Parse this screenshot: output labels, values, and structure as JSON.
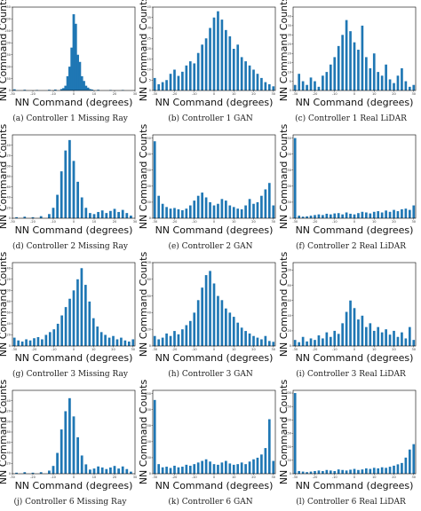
{
  "figure": {
    "bar_color": "#1f77b4",
    "axis_color": "#000000"
  },
  "chart_data": [
    {
      "type": "bar",
      "caption": "(a) Controller 1 Missing Ray",
      "xlabel": "NN Command (degrees)",
      "ylabel": "NN Command Counts",
      "xlim": [
        -30,
        30
      ],
      "ylim": [
        0,
        350
      ],
      "xticks": [
        -30,
        -20,
        -10,
        0,
        10,
        20,
        30
      ],
      "yticks": [
        0,
        50,
        100,
        150,
        200,
        250,
        300,
        350
      ],
      "bin_width": 1.2,
      "x": [
        -29,
        -24,
        -18,
        -12,
        -9,
        -6,
        -5,
        -4,
        -3,
        -2,
        -1,
        0,
        1,
        2,
        3,
        4,
        5,
        6,
        7,
        8,
        9,
        12,
        18,
        24
      ],
      "values": [
        5,
        3,
        2,
        3,
        4,
        6,
        10,
        20,
        60,
        100,
        180,
        320,
        280,
        150,
        120,
        60,
        40,
        20,
        12,
        6,
        4,
        3,
        2,
        2
      ]
    },
    {
      "type": "bar",
      "caption": "(b) Controller 1 GAN",
      "xlabel": "NN Command (degrees)",
      "ylabel": "NN Command Counts",
      "xlim": [
        -31,
        31
      ],
      "ylim": [
        0,
        40
      ],
      "xticks": [
        -30,
        -20,
        -10,
        0,
        10,
        20,
        30
      ],
      "yticks": [
        0,
        5,
        10,
        15,
        20,
        25,
        30,
        35,
        40
      ],
      "bin_width": 1.2,
      "x": [
        -30,
        -28,
        -26,
        -24,
        -22,
        -20,
        -18,
        -16,
        -14,
        -12,
        -10,
        -8,
        -6,
        -4,
        -2,
        0,
        2,
        4,
        6,
        8,
        10,
        12,
        14,
        16,
        18,
        20,
        22,
        24,
        26,
        28,
        30
      ],
      "values": [
        6,
        3,
        4,
        5,
        8,
        10,
        7,
        9,
        12,
        14,
        13,
        18,
        22,
        25,
        30,
        35,
        38,
        34,
        29,
        26,
        20,
        22,
        16,
        14,
        12,
        10,
        8,
        6,
        4,
        3,
        2
      ]
    },
    {
      "type": "bar",
      "caption": "(c) Controller 1 Real LiDAR",
      "xlabel": "NN Command (degrees)",
      "ylabel": "NN Command Counts",
      "xlim": [
        -31,
        31
      ],
      "ylim": [
        0,
        45
      ],
      "xticks": [
        -30,
        -20,
        -10,
        0,
        10,
        20,
        30
      ],
      "yticks": [
        0,
        5,
        10,
        15,
        20,
        25,
        30,
        35,
        40
      ],
      "bin_width": 1.2,
      "x": [
        -30,
        -28,
        -26,
        -24,
        -22,
        -20,
        -18,
        -16,
        -14,
        -12,
        -10,
        -8,
        -6,
        -4,
        -2,
        0,
        2,
        4,
        6,
        8,
        10,
        12,
        14,
        16,
        18,
        20,
        22,
        24,
        26,
        28,
        30
      ],
      "values": [
        3,
        9,
        5,
        3,
        7,
        5,
        2,
        8,
        10,
        14,
        18,
        24,
        30,
        38,
        32,
        26,
        22,
        35,
        18,
        12,
        20,
        10,
        8,
        14,
        6,
        4,
        8,
        12,
        5,
        2,
        3
      ]
    },
    {
      "type": "bar",
      "caption": "(d) Controller 2 Missing Ray",
      "xlabel": "NN Command (degrees)",
      "ylabel": "NN Command Counts",
      "xlim": [
        -30,
        30
      ],
      "ylim": [
        0,
        160
      ],
      "xticks": [
        -30,
        -20,
        -10,
        0,
        10,
        20,
        30
      ],
      "yticks": [
        0,
        20,
        40,
        60,
        80,
        100,
        120,
        140
      ],
      "bin_width": 1.2,
      "x": [
        -28,
        -24,
        -20,
        -16,
        -12,
        -10,
        -8,
        -6,
        -4,
        -2,
        0,
        2,
        4,
        6,
        8,
        10,
        12,
        14,
        16,
        18,
        20,
        22,
        24,
        26,
        28
      ],
      "values": [
        2,
        3,
        2,
        4,
        8,
        20,
        45,
        90,
        130,
        150,
        110,
        70,
        40,
        20,
        10,
        8,
        12,
        15,
        10,
        14,
        18,
        12,
        16,
        10,
        5
      ]
    },
    {
      "type": "bar",
      "caption": "(e) Controller 2 GAN",
      "xlabel": "NN Command (degrees)",
      "ylabel": "NN Command Counts",
      "xlim": [
        -31,
        31
      ],
      "ylim": [
        0,
        260
      ],
      "xticks": [
        -30,
        -20,
        -10,
        0,
        10,
        20,
        30
      ],
      "yticks": [
        0,
        50,
        100,
        150,
        200,
        250
      ],
      "bin_width": 1.2,
      "x": [
        -30,
        -28,
        -26,
        -24,
        -22,
        -20,
        -18,
        -16,
        -14,
        -12,
        -10,
        -8,
        -6,
        -4,
        -2,
        0,
        2,
        4,
        6,
        8,
        10,
        12,
        14,
        16,
        18,
        20,
        22,
        24,
        26,
        28,
        30
      ],
      "values": [
        240,
        70,
        45,
        35,
        30,
        32,
        28,
        25,
        30,
        40,
        55,
        70,
        80,
        65,
        50,
        40,
        45,
        60,
        55,
        40,
        35,
        30,
        28,
        40,
        60,
        45,
        50,
        70,
        90,
        110,
        40
      ]
    },
    {
      "type": "bar",
      "caption": "(f) Controller 2 Real LiDAR",
      "xlabel": "NN Command (degrees)",
      "ylabel": "NN Command Counts",
      "xlim": [
        -31,
        31
      ],
      "ylim": [
        0,
        260
      ],
      "xticks": [
        -30,
        -20,
        -10,
        0,
        10,
        20,
        30
      ],
      "yticks": [
        0,
        50,
        100,
        150,
        200,
        250
      ],
      "bin_width": 1.2,
      "x": [
        -30,
        -28,
        -26,
        -24,
        -22,
        -20,
        -18,
        -16,
        -14,
        -12,
        -10,
        -8,
        -6,
        -4,
        -2,
        0,
        2,
        4,
        6,
        8,
        10,
        12,
        14,
        16,
        18,
        20,
        22,
        24,
        26,
        28,
        30
      ],
      "values": [
        250,
        8,
        5,
        6,
        8,
        10,
        12,
        10,
        14,
        12,
        15,
        16,
        12,
        18,
        14,
        12,
        16,
        20,
        18,
        15,
        20,
        22,
        18,
        24,
        20,
        26,
        22,
        28,
        30,
        26,
        40
      ]
    },
    {
      "type": "bar",
      "caption": "(g) Controller 3 Missing Ray",
      "xlabel": "NN Command (degrees)",
      "ylabel": "NN Command Counts",
      "xlim": [
        -31,
        31
      ],
      "ylim": [
        0,
        150
      ],
      "xticks": [
        -30,
        -20,
        -10,
        0,
        10,
        20,
        30
      ],
      "yticks": [
        0,
        20,
        40,
        60,
        80,
        100,
        120,
        140
      ],
      "bin_width": 1.2,
      "x": [
        -30,
        -28,
        -26,
        -24,
        -22,
        -20,
        -18,
        -16,
        -14,
        -12,
        -10,
        -8,
        -6,
        -4,
        -2,
        0,
        2,
        4,
        6,
        8,
        10,
        12,
        14,
        16,
        18,
        20,
        22,
        24,
        26,
        28,
        30
      ],
      "values": [
        15,
        10,
        8,
        12,
        10,
        14,
        16,
        12,
        20,
        25,
        30,
        40,
        55,
        70,
        85,
        100,
        120,
        140,
        110,
        80,
        50,
        35,
        25,
        20,
        15,
        18,
        12,
        15,
        10,
        8,
        12
      ]
    },
    {
      "type": "bar",
      "caption": "(h) Controller 3 GAN",
      "xlabel": "NN Command (degrees)",
      "ylabel": "NN Command Counts",
      "xlim": [
        -31,
        31
      ],
      "ylim": [
        0,
        100
      ],
      "xticks": [
        -30,
        -20,
        -10,
        0,
        10,
        20,
        30
      ],
      "yticks": [
        0,
        20,
        40,
        60,
        80,
        100
      ],
      "bin_width": 1.2,
      "x": [
        -30,
        -28,
        -26,
        -24,
        -22,
        -20,
        -18,
        -16,
        -14,
        -12,
        -10,
        -8,
        -6,
        -4,
        -2,
        0,
        2,
        4,
        6,
        8,
        10,
        12,
        14,
        16,
        18,
        20,
        22,
        24,
        26,
        28,
        30
      ],
      "values": [
        12,
        8,
        10,
        15,
        12,
        18,
        14,
        20,
        25,
        30,
        40,
        55,
        70,
        85,
        90,
        75,
        60,
        55,
        45,
        40,
        35,
        28,
        22,
        18,
        15,
        12,
        10,
        8,
        12,
        6,
        5
      ]
    },
    {
      "type": "bar",
      "caption": "(i) Controller 3 Real LiDAR",
      "xlabel": "NN Command (degrees)",
      "ylabel": "NN Command Counts",
      "xlim": [
        -31,
        31
      ],
      "ylim": [
        0,
        110
      ],
      "xticks": [
        -30,
        -20,
        -10,
        0,
        10,
        20,
        30
      ],
      "yticks": [
        0,
        20,
        40,
        60,
        80,
        100
      ],
      "bin_width": 1.2,
      "x": [
        -30,
        -28,
        -26,
        -24,
        -22,
        -20,
        -18,
        -16,
        -14,
        -12,
        -10,
        -8,
        -6,
        -4,
        -2,
        0,
        2,
        4,
        6,
        8,
        10,
        12,
        14,
        16,
        18,
        20,
        22,
        24,
        26,
        28,
        30
      ],
      "values": [
        8,
        5,
        12,
        6,
        10,
        8,
        14,
        10,
        18,
        12,
        20,
        16,
        30,
        45,
        60,
        50,
        35,
        40,
        25,
        30,
        20,
        25,
        18,
        22,
        15,
        20,
        12,
        18,
        10,
        25,
        8
      ]
    },
    {
      "type": "bar",
      "caption": "(j) Controller 6 Missing Ray",
      "xlabel": "NN Command (degrees)",
      "ylabel": "NN Command Counts",
      "xlim": [
        -30,
        30
      ],
      "ylim": [
        0,
        160
      ],
      "xticks": [
        -30,
        -20,
        -10,
        0,
        10,
        20,
        30
      ],
      "yticks": [
        0,
        20,
        40,
        60,
        80,
        100,
        120,
        140
      ],
      "bin_width": 1.2,
      "x": [
        -28,
        -24,
        -20,
        -16,
        -12,
        -10,
        -8,
        -6,
        -4,
        -2,
        0,
        2,
        4,
        6,
        8,
        10,
        12,
        14,
        16,
        18,
        20,
        22,
        24,
        26,
        28
      ],
      "values": [
        2,
        3,
        2,
        3,
        6,
        15,
        40,
        85,
        120,
        145,
        110,
        70,
        35,
        18,
        8,
        10,
        14,
        12,
        9,
        12,
        15,
        10,
        14,
        9,
        4
      ]
    },
    {
      "type": "bar",
      "caption": "(k) Controller 6 GAN",
      "xlabel": "NN Command (degrees)",
      "ylabel": "NN Command Counts",
      "xlim": [
        -31,
        31
      ],
      "ylim": [
        0,
        260
      ],
      "xticks": [
        -30,
        -20,
        -10,
        0,
        10,
        20,
        30
      ],
      "yticks": [
        0,
        50,
        100,
        150,
        200,
        250
      ],
      "bin_width": 1.2,
      "x": [
        -30,
        -28,
        -26,
        -24,
        -22,
        -20,
        -18,
        -16,
        -14,
        -12,
        -10,
        -8,
        -6,
        -4,
        -2,
        0,
        2,
        4,
        6,
        8,
        10,
        12,
        14,
        16,
        18,
        20,
        22,
        24,
        26,
        28,
        30
      ],
      "values": [
        230,
        30,
        20,
        22,
        18,
        25,
        20,
        22,
        28,
        25,
        30,
        35,
        40,
        45,
        38,
        30,
        28,
        35,
        40,
        32,
        28,
        30,
        35,
        30,
        38,
        45,
        50,
        60,
        80,
        170,
        40
      ]
    },
    {
      "type": "bar",
      "caption": "(l) Controller 6 Real LiDAR",
      "xlabel": "NN Command (degrees)",
      "ylabel": "NN Command Counts",
      "xlim": [
        -31,
        31
      ],
      "ylim": [
        0,
        310
      ],
      "xticks": [
        -30,
        -20,
        -10,
        0,
        10,
        20,
        30
      ],
      "yticks": [
        0,
        50,
        100,
        150,
        200,
        250,
        300
      ],
      "bin_width": 1.2,
      "x": [
        -30,
        -28,
        -26,
        -24,
        -22,
        -20,
        -18,
        -16,
        -14,
        -12,
        -10,
        -8,
        -6,
        -4,
        -2,
        0,
        2,
        4,
        6,
        8,
        10,
        12,
        14,
        16,
        18,
        20,
        22,
        24,
        26,
        28,
        30
      ],
      "values": [
        300,
        10,
        8,
        6,
        8,
        10,
        12,
        10,
        14,
        12,
        10,
        16,
        14,
        12,
        15,
        18,
        14,
        16,
        20,
        18,
        22,
        20,
        24,
        22,
        26,
        30,
        35,
        40,
        60,
        90,
        110
      ]
    }
  ]
}
